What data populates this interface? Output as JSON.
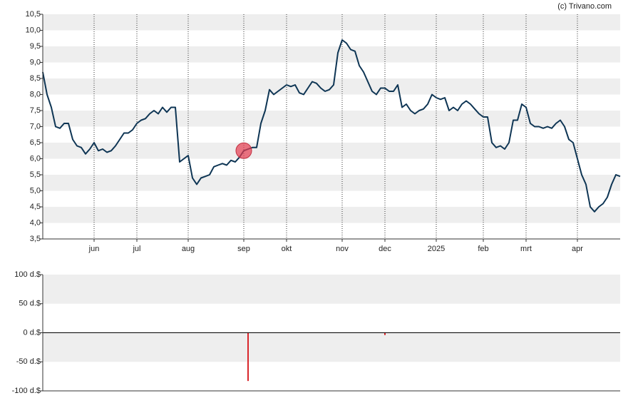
{
  "credit": "(c) Trivano.com",
  "chart_data": [
    {
      "type": "line",
      "categories": [
        null,
        null,
        null,
        null,
        null,
        null,
        null,
        null,
        null,
        null,
        null,
        null,
        "jun",
        null,
        null,
        null,
        null,
        null,
        null,
        null,
        null,
        null,
        "jul",
        null,
        null,
        null,
        null,
        null,
        null,
        null,
        null,
        null,
        null,
        null,
        "aug",
        null,
        null,
        null,
        null,
        null,
        null,
        null,
        null,
        null,
        null,
        null,
        null,
        "sep",
        null,
        null,
        null,
        null,
        null,
        null,
        null,
        null,
        null,
        "okt",
        null,
        null,
        null,
        null,
        null,
        null,
        null,
        null,
        null,
        null,
        null,
        null,
        "nov",
        null,
        null,
        null,
        null,
        null,
        null,
        null,
        null,
        null,
        "dec",
        null,
        null,
        null,
        null,
        null,
        null,
        null,
        null,
        null,
        null,
        null,
        "2025",
        null,
        null,
        null,
        null,
        null,
        null,
        null,
        null,
        null,
        null,
        "feb",
        null,
        null,
        null,
        null,
        null,
        null,
        null,
        null,
        null,
        "mrt",
        null,
        null,
        null,
        null,
        null,
        null,
        null,
        null,
        null,
        null,
        null,
        "apr",
        null,
        null,
        null,
        null,
        null,
        null,
        null,
        null,
        null,
        null
      ],
      "values": [
        8.7,
        8.0,
        7.6,
        7.0,
        6.95,
        7.1,
        7.1,
        6.6,
        6.4,
        6.35,
        6.15,
        6.3,
        6.5,
        6.25,
        6.3,
        6.2,
        6.25,
        6.4,
        6.6,
        6.8,
        6.8,
        6.9,
        7.1,
        7.2,
        7.25,
        7.4,
        7.5,
        7.4,
        7.6,
        7.45,
        7.6,
        7.6,
        5.9,
        6.0,
        6.1,
        5.4,
        5.2,
        5.4,
        5.45,
        5.5,
        5.75,
        5.8,
        5.85,
        5.8,
        5.95,
        5.9,
        6.05,
        6.25,
        6.3,
        6.35,
        6.35,
        7.1,
        7.5,
        8.15,
        8.0,
        8.1,
        8.2,
        8.3,
        8.25,
        8.3,
        8.05,
        8.0,
        8.2,
        8.4,
        8.35,
        8.2,
        8.1,
        8.15,
        8.3,
        9.3,
        9.7,
        9.6,
        9.4,
        9.35,
        8.9,
        8.7,
        8.4,
        8.1,
        8.0,
        8.2,
        8.2,
        8.1,
        8.1,
        8.3,
        7.6,
        7.7,
        7.5,
        7.4,
        7.5,
        7.55,
        7.7,
        8.0,
        7.9,
        7.85,
        7.9,
        7.5,
        7.6,
        7.5,
        7.7,
        7.8,
        7.7,
        7.55,
        7.4,
        7.3,
        7.3,
        6.5,
        6.35,
        6.4,
        6.3,
        6.5,
        7.2,
        7.2,
        7.7,
        7.6,
        7.1,
        7.0,
        7.0,
        6.95,
        7.0,
        6.95,
        7.1,
        7.2,
        7.0,
        6.6,
        6.5,
        6.0,
        5.5,
        5.2,
        4.5,
        4.35,
        4.5,
        4.6,
        4.8,
        5.2,
        5.5,
        5.45
      ],
      "color": "#0e3554",
      "ylim": [
        3.5,
        10.5
      ],
      "yticks": [
        {
          "value": 3.5,
          "label": "3,5"
        },
        {
          "value": 4.0,
          "label": "4,0"
        },
        {
          "value": 4.5,
          "label": "4,5"
        },
        {
          "value": 5.0,
          "label": "5,0"
        },
        {
          "value": 5.5,
          "label": "5,5"
        },
        {
          "value": 6.0,
          "label": "6,0"
        },
        {
          "value": 6.5,
          "label": "6,5"
        },
        {
          "value": 7.0,
          "label": "7,0"
        },
        {
          "value": 7.5,
          "label": "7,5"
        },
        {
          "value": 8.0,
          "label": "8,0"
        },
        {
          "value": 8.5,
          "label": "8,5"
        },
        {
          "value": 9.0,
          "label": "9,0"
        },
        {
          "value": 9.5,
          "label": "9,5"
        },
        {
          "value": 10.0,
          "label": "10,0"
        },
        {
          "value": 10.5,
          "label": "10,5"
        }
      ],
      "grid": true
    },
    {
      "type": "bar",
      "values": [
        null,
        null,
        null,
        null,
        null,
        null,
        null,
        null,
        null,
        null,
        null,
        null,
        null,
        null,
        null,
        null,
        null,
        null,
        null,
        null,
        null,
        null,
        null,
        null,
        null,
        null,
        null,
        null,
        null,
        null,
        null,
        null,
        null,
        null,
        null,
        null,
        null,
        null,
        null,
        null,
        null,
        null,
        null,
        null,
        null,
        null,
        null,
        null,
        -83,
        null,
        null,
        null,
        null,
        null,
        null,
        null,
        null,
        null,
        null,
        null,
        null,
        null,
        null,
        null,
        null,
        null,
        null,
        null,
        null,
        null,
        null,
        null,
        null,
        null,
        null,
        null,
        null,
        null,
        null,
        null,
        -4,
        null,
        null,
        null,
        null,
        null,
        null,
        null,
        null,
        null,
        null,
        null,
        null,
        null,
        null,
        null,
        null,
        null,
        null,
        null,
        null,
        null,
        null,
        null,
        null,
        null,
        null,
        null,
        null,
        null,
        null,
        null,
        null,
        null,
        null,
        null,
        null,
        null,
        null,
        null,
        null,
        null,
        null,
        null,
        null,
        null,
        null,
        null,
        null,
        null,
        null,
        null,
        null,
        null,
        null,
        null
      ],
      "color": "#d9262b",
      "ylim": [
        -100,
        100
      ],
      "yticks": [
        {
          "value": -100,
          "label": "-100 d.$"
        },
        {
          "value": -50,
          "label": "-50 d.$"
        },
        {
          "value": 0,
          "label": "0 d.$"
        },
        {
          "value": 50,
          "label": "50 d.$"
        },
        {
          "value": 100,
          "label": "100 d.$"
        }
      ],
      "grid": true
    }
  ]
}
